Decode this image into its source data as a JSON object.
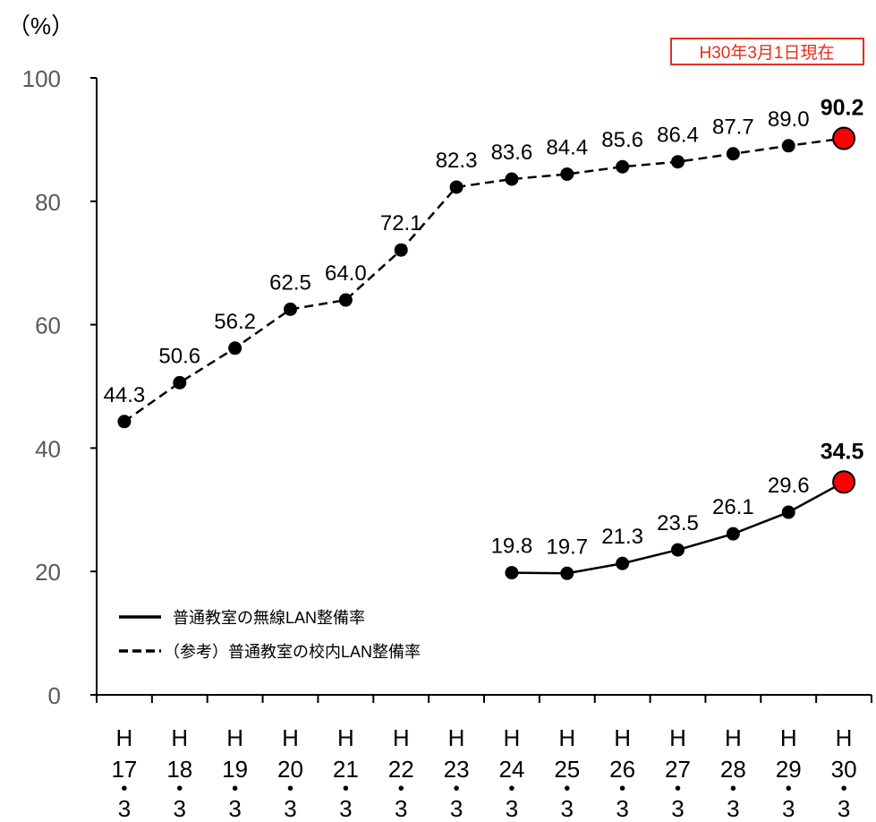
{
  "chart_data": {
    "type": "line",
    "ylabel": "（%）",
    "ylim": [
      0,
      100
    ],
    "yticks": [
      0,
      20,
      40,
      60,
      80,
      100
    ],
    "grid": false,
    "legend_position": "bottom-left",
    "annotation": "H30年3月1日現在",
    "categories": [
      {
        "era": "H",
        "year": "17",
        "sep": "・",
        "month": "3"
      },
      {
        "era": "H",
        "year": "18",
        "sep": "・",
        "month": "3"
      },
      {
        "era": "H",
        "year": "19",
        "sep": "・",
        "month": "3"
      },
      {
        "era": "H",
        "year": "20",
        "sep": "・",
        "month": "3"
      },
      {
        "era": "H",
        "year": "21",
        "sep": "・",
        "month": "3"
      },
      {
        "era": "H",
        "year": "22",
        "sep": "・",
        "month": "3"
      },
      {
        "era": "H",
        "year": "23",
        "sep": "・",
        "month": "3"
      },
      {
        "era": "H",
        "year": "24",
        "sep": "・",
        "month": "3"
      },
      {
        "era": "H",
        "year": "25",
        "sep": "・",
        "month": "3"
      },
      {
        "era": "H",
        "year": "26",
        "sep": "・",
        "month": "3"
      },
      {
        "era": "H",
        "year": "27",
        "sep": "・",
        "month": "3"
      },
      {
        "era": "H",
        "year": "28",
        "sep": "・",
        "month": "3"
      },
      {
        "era": "H",
        "year": "29",
        "sep": "・",
        "month": "3"
      },
      {
        "era": "H",
        "year": "30",
        "sep": "・",
        "month": "3"
      }
    ],
    "series": [
      {
        "name": "（参考）普通教室の校内LAN整備率",
        "style": "dashed",
        "values": [
          44.3,
          50.6,
          56.2,
          62.5,
          64.0,
          72.1,
          82.3,
          83.6,
          84.4,
          85.6,
          86.4,
          87.7,
          89.0,
          90.2
        ],
        "labels": [
          "44.3",
          "50.6",
          "56.2",
          "62.5",
          "64.0",
          "72.1",
          "82.3",
          "83.6",
          "84.4",
          "85.6",
          "86.4",
          "87.7",
          "89.0",
          "90.2"
        ]
      },
      {
        "name": "普通教室の無線LAN整備率",
        "style": "solid",
        "values": [
          null,
          null,
          null,
          null,
          null,
          null,
          null,
          19.8,
          19.7,
          21.3,
          23.5,
          26.1,
          29.6,
          34.5
        ],
        "labels": [
          null,
          null,
          null,
          null,
          null,
          null,
          null,
          "19.8",
          "19.7",
          "21.3",
          "23.5",
          "26.1",
          "29.6",
          "34.5"
        ]
      }
    ],
    "colors": {
      "line": "#000000",
      "highlight_fill": "#ff0000",
      "axis": "#000000",
      "tick_text": "#595959",
      "stamp": "#e0301e"
    }
  }
}
